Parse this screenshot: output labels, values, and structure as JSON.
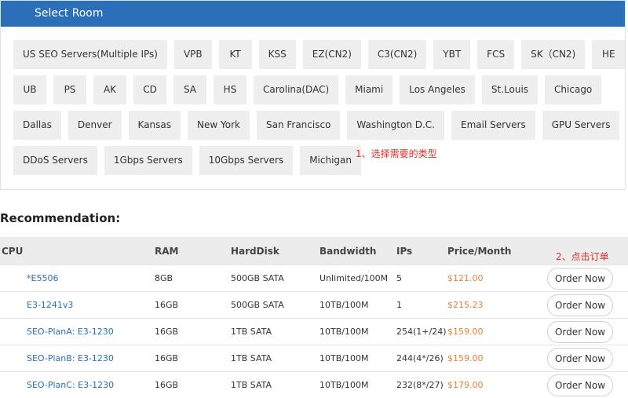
{
  "header": {
    "title": "Select Room"
  },
  "rooms": [
    [
      "US SEO Servers(Multiple IPs)",
      "VPB",
      "KT",
      "KSS",
      "EZ(CN2)",
      "C3(CN2)",
      "YBT",
      "FCS",
      "SK（CN2)",
      "HE"
    ],
    [
      "UB",
      "PS",
      "AK",
      "CD",
      "SA",
      "HS",
      "Carolina(DAC)",
      "Miami",
      "Los Angeles",
      "St.Louis",
      "Chicago"
    ],
    [
      "Dallas",
      "Denver",
      "Kansas",
      "New York",
      "San Francisco",
      "Washington D.C.",
      "Email Servers",
      "GPU Servers"
    ],
    [
      "DDoS Servers",
      "1Gbps Servers",
      "10Gbps Servers",
      "Michigan"
    ]
  ],
  "annotation_1": "1、选择需要的类型",
  "recommendation": {
    "title": "Recommendation:",
    "columns": [
      "CPU",
      "RAM",
      "HardDisk",
      "Bandwidth",
      "IPs",
      "Price/Month"
    ],
    "annotation_2": "2、点击订单",
    "order_button": "Order Now",
    "rows": [
      [
        "*E5506",
        "8GB",
        "500GB SATA",
        "Unlimited/100M",
        "5",
        "$121.00"
      ],
      [
        "E3-1241v3",
        "16GB",
        "500GB SATA",
        "10TB/100M",
        "1",
        "$215.23"
      ],
      [
        "SEO-PlanA: E3-1230",
        "16GB",
        "1TB SATA",
        "10TB/100M",
        "254(1+/24)",
        "$159.00"
      ],
      [
        "SEO-PlanB: E3-1230",
        "16GB",
        "1TB SATA",
        "10TB/100M",
        "244(4*/26)",
        "$159.00"
      ],
      [
        "SEO-PlanC: E3-1230",
        "16GB",
        "1TB SATA",
        "10TB/100M",
        "232(8*/27)",
        "$179.00"
      ]
    ]
  }
}
